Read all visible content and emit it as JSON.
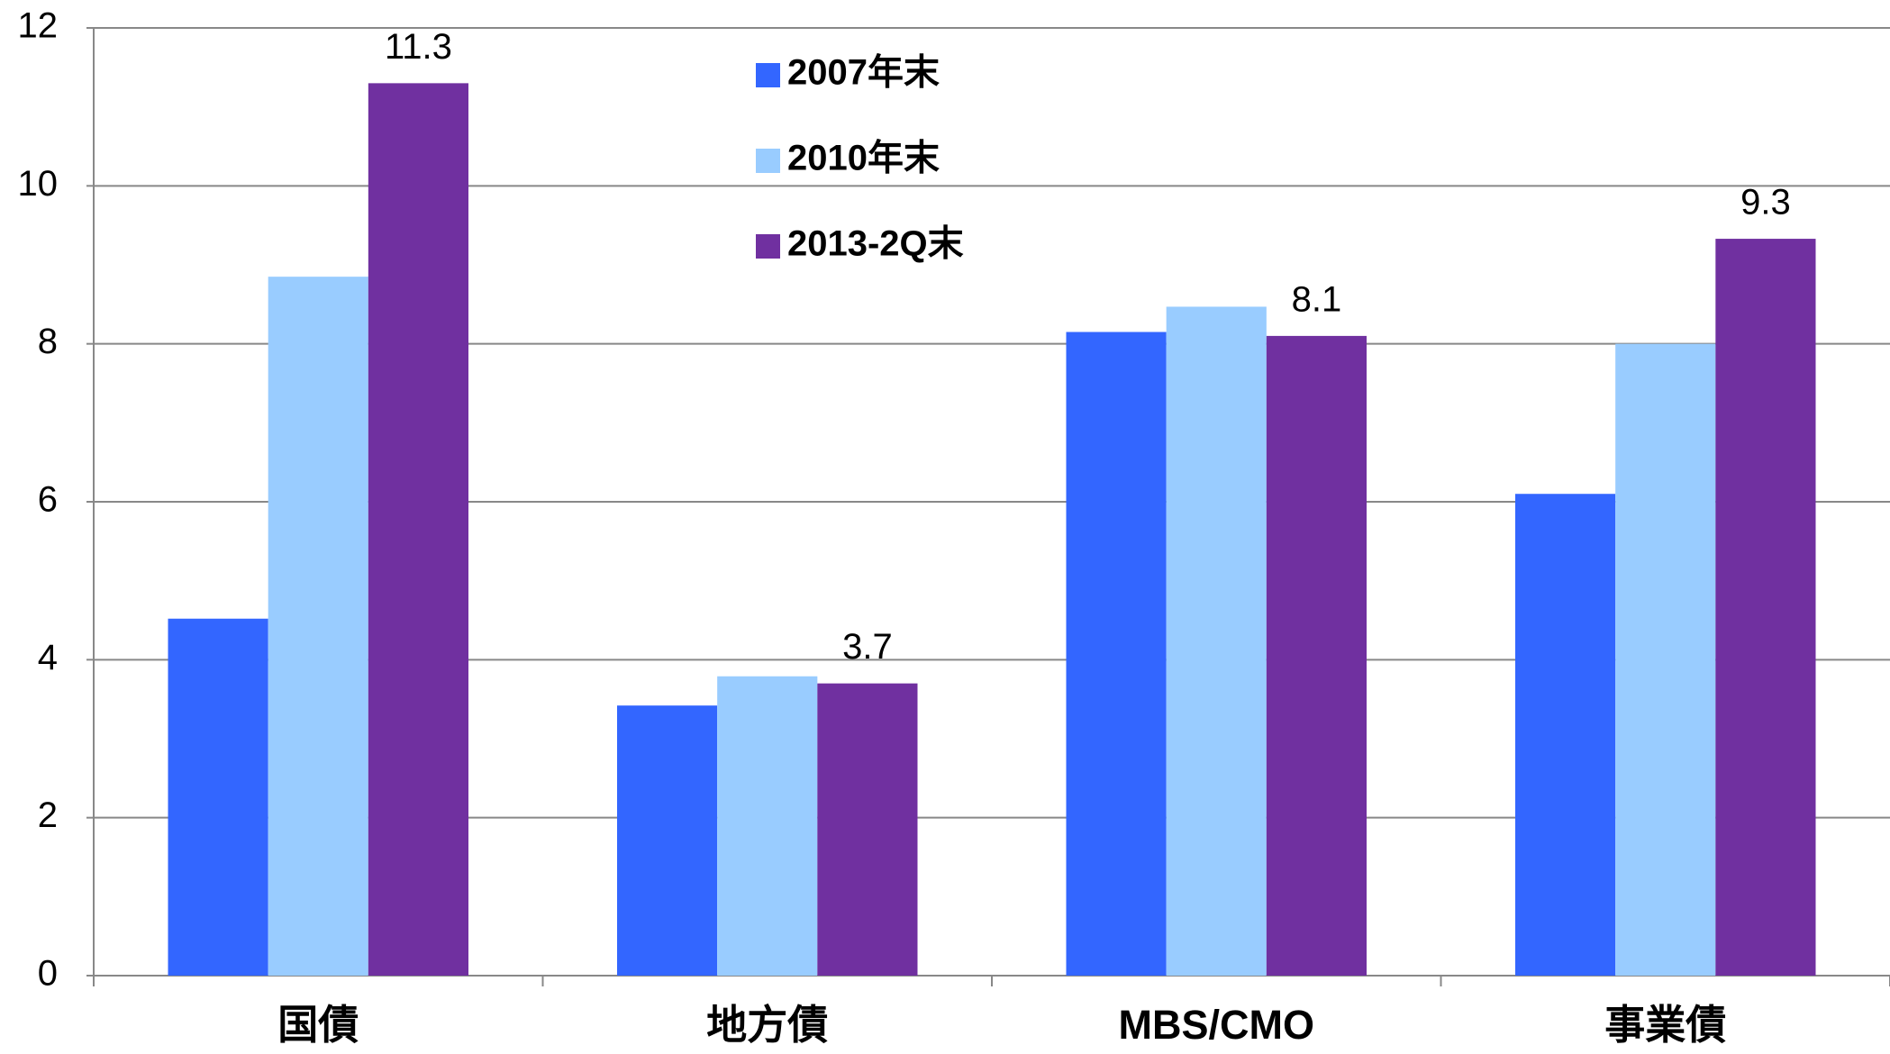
{
  "chart_data": {
    "type": "bar",
    "categories": [
      "国債",
      "地方債",
      "MBS/CMO",
      "事業債"
    ],
    "series": [
      {
        "name": "2007年末",
        "color": "#3366ff",
        "values": [
          4.52,
          3.42,
          8.15,
          6.1
        ]
      },
      {
        "name": "2010年末",
        "color": "#99ccff",
        "values": [
          8.85,
          3.79,
          8.47,
          8.0
        ]
      },
      {
        "name": "2013-2Q末",
        "color": "#7030a0",
        "values": [
          11.3,
          3.7,
          8.1,
          9.33
        ],
        "value_labels": [
          "11.3",
          "3.7",
          "8.1",
          "9.3"
        ]
      }
    ],
    "ylim": [
      0,
      12
    ],
    "yticks": [
      0,
      2,
      4,
      6,
      8,
      10,
      12
    ],
    "grid": true,
    "legend": "top"
  }
}
